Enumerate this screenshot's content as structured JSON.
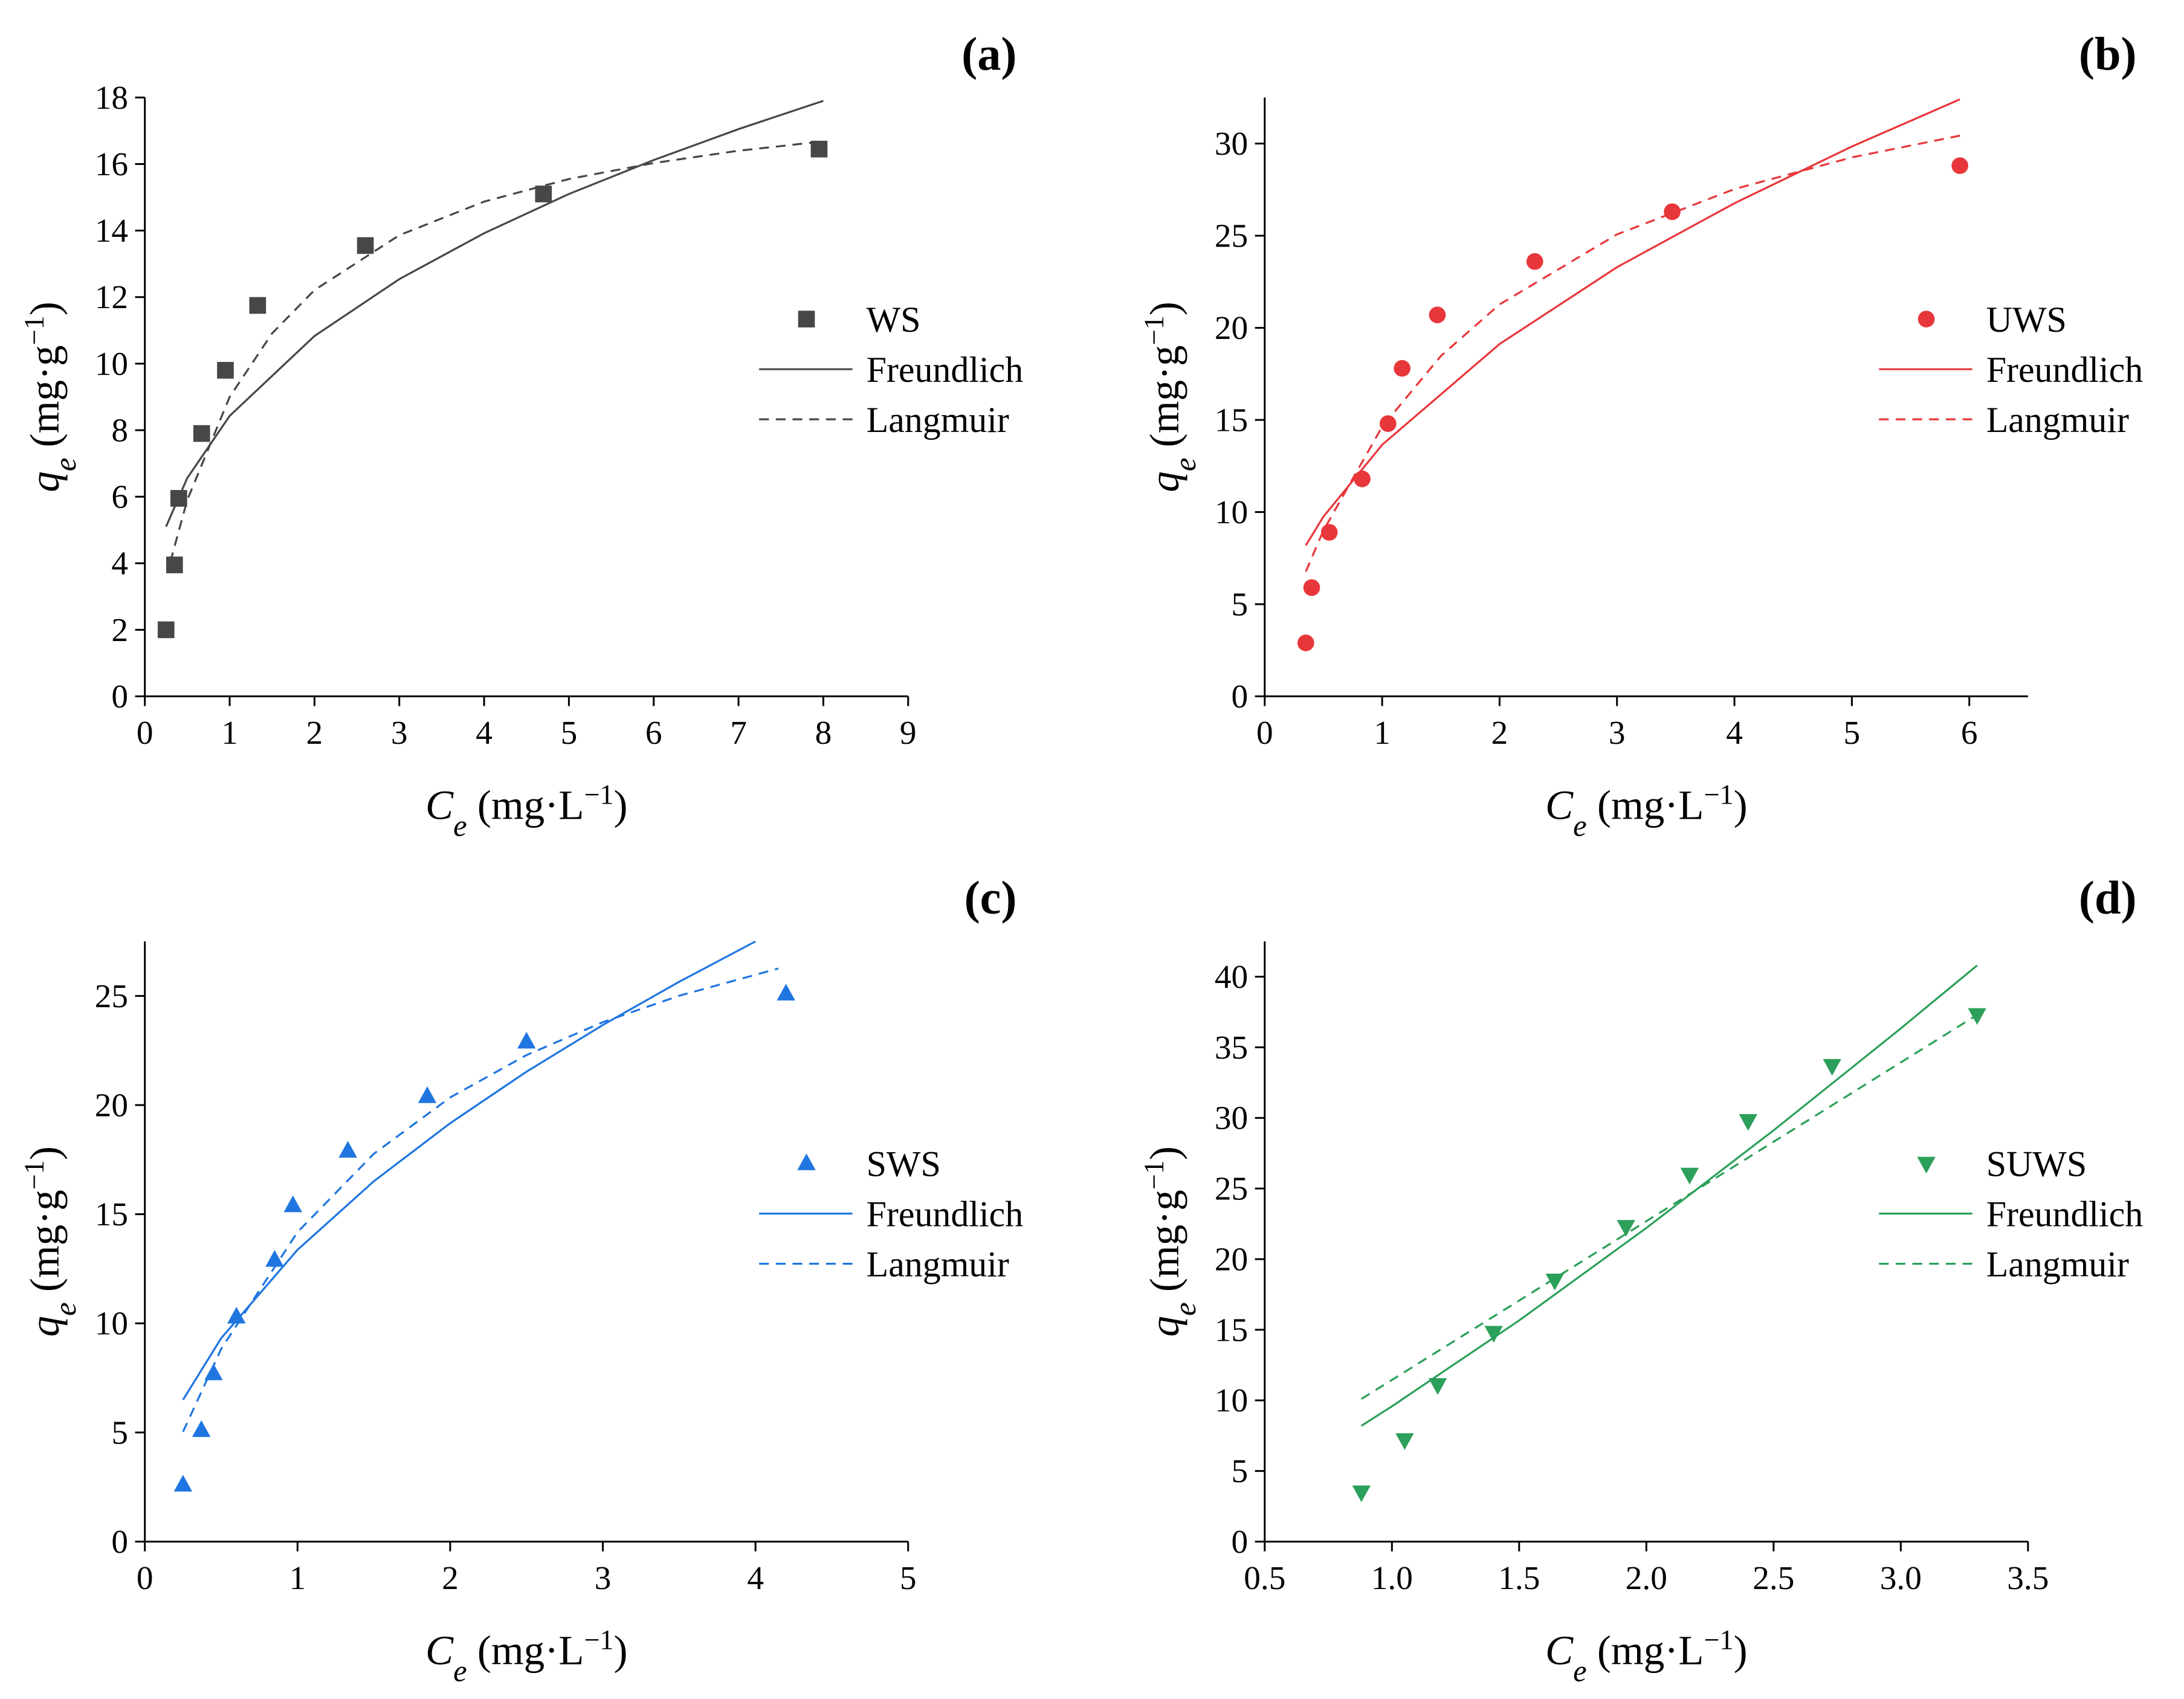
{
  "chart_data": [
    {
      "type": "scatter",
      "panel_label": "(a)",
      "xlabel": [
        "C",
        "e",
        " (mg·L",
        "−1",
        ")"
      ],
      "ylabel": [
        "q",
        "e",
        " (mg·g",
        "−1",
        ")"
      ],
      "xlim": [
        0,
        9
      ],
      "xticks": [
        0,
        1,
        2,
        3,
        4,
        5,
        6,
        7,
        8,
        9
      ],
      "ylim": [
        0,
        18
      ],
      "yticks": [
        0,
        2,
        4,
        6,
        8,
        10,
        12,
        14,
        16,
        18
      ],
      "legend": "right",
      "series": [
        {
          "name": "WS",
          "marker": "square",
          "color": "#474747",
          "x": [
            0.25,
            0.35,
            0.4,
            0.67,
            0.95,
            1.33,
            2.6,
            4.7,
            7.95
          ],
          "values": [
            2.0,
            3.95,
            5.95,
            7.9,
            9.8,
            11.75,
            13.55,
            15.1,
            16.45
          ]
        },
        {
          "name": "Freundlich",
          "linestyle": "solid",
          "color": "#474747",
          "x": [
            0.25,
            0.5,
            1,
            2,
            3,
            4,
            5,
            6,
            7,
            8
          ],
          "values": [
            5.1,
            6.56,
            8.43,
            10.83,
            12.54,
            13.92,
            15.1,
            16.12,
            17.05,
            17.9
          ]
        },
        {
          "name": "Langmuir",
          "linestyle": "dashed",
          "color": "#474747",
          "x": [
            0.3,
            0.5,
            1,
            1.5,
            2,
            3,
            4,
            5,
            6,
            7,
            8
          ],
          "values": [
            4.04,
            5.9,
            9.0,
            10.91,
            12.21,
            13.86,
            14.87,
            15.55,
            16.03,
            16.4,
            16.68
          ]
        }
      ]
    },
    {
      "type": "scatter",
      "panel_label": "(b)",
      "xlabel": [
        "C",
        "e",
        " (mg·L",
        "−1",
        ")"
      ],
      "ylabel": [
        "q",
        "e",
        " (mg·g",
        "−1",
        ")"
      ],
      "xlim": [
        0,
        6.5
      ],
      "xticks": [
        0,
        1,
        2,
        3,
        4,
        5,
        6
      ],
      "ylim": [
        0,
        32.5
      ],
      "yticks": [
        0,
        5,
        10,
        15,
        20,
        25,
        30
      ],
      "legend": "right",
      "series": [
        {
          "name": "UWS",
          "marker": "circle",
          "color": "#e8373a",
          "x": [
            0.35,
            0.4,
            0.55,
            0.83,
            1.05,
            1.17,
            1.47,
            2.3,
            3.47,
            5.92
          ],
          "values": [
            2.9,
            5.9,
            8.9,
            11.8,
            14.8,
            17.8,
            20.7,
            23.6,
            26.3,
            28.8
          ]
        },
        {
          "name": "Freundlich",
          "linestyle": "solid",
          "color": "#e8373a",
          "x": [
            0.35,
            0.5,
            1,
            2,
            3,
            4,
            5,
            5.92
          ],
          "values": [
            8.19,
            9.75,
            13.65,
            19.12,
            23.29,
            26.76,
            29.84,
            32.4
          ]
        },
        {
          "name": "Langmuir",
          "linestyle": "dashed",
          "color": "#e8373a",
          "x": [
            0.35,
            0.5,
            1,
            1.5,
            2,
            3,
            4,
            5,
            5.92
          ],
          "values": [
            6.77,
            9.0,
            14.63,
            18.47,
            21.27,
            25.07,
            27.53,
            29.25,
            30.43
          ]
        }
      ]
    },
    {
      "type": "scatter",
      "panel_label": "(c)",
      "xlabel": [
        "C",
        "e",
        " (mg·L",
        "−1",
        ")"
      ],
      "ylabel": [
        "q",
        "e",
        " (mg·g",
        "−1",
        ")"
      ],
      "xlim": [
        0,
        5
      ],
      "xticks": [
        0,
        1,
        2,
        3,
        4,
        5
      ],
      "ylim": [
        0,
        27.5
      ],
      "yticks": [
        0,
        5,
        10,
        15,
        20,
        25
      ],
      "legend": "right",
      "series": [
        {
          "name": "SWS",
          "marker": "triangle-up",
          "color": "#1f76e0",
          "x": [
            0.25,
            0.37,
            0.45,
            0.6,
            0.85,
            0.97,
            1.33,
            1.85,
            2.5,
            4.2
          ],
          "values": [
            2.6,
            5.1,
            7.7,
            10.3,
            12.9,
            15.4,
            17.9,
            20.4,
            22.9,
            25.1
          ]
        },
        {
          "name": "Freundlich",
          "linestyle": "solid",
          "color": "#1f76e0",
          "x": [
            0.25,
            0.5,
            1,
            1.5,
            2,
            2.5,
            3,
            3.5,
            4
          ],
          "values": [
            6.5,
            9.32,
            13.37,
            16.51,
            19.17,
            21.53,
            23.67,
            25.65,
            27.5
          ]
        },
        {
          "name": "Langmuir",
          "linestyle": "dashed",
          "color": "#1f76e0",
          "x": [
            0.25,
            0.5,
            1,
            1.5,
            2,
            2.5,
            3,
            3.5,
            4.15
          ],
          "values": [
            5.03,
            8.83,
            14.18,
            17.77,
            20.35,
            22.29,
            23.8,
            25.01,
            26.26
          ]
        }
      ]
    },
    {
      "type": "scatter",
      "panel_label": "(d)",
      "xlabel": [
        "C",
        "e",
        " (mg·L",
        "−1",
        ")"
      ],
      "ylabel": [
        "q",
        "e",
        " (mg·g",
        "−1",
        ")"
      ],
      "xlim": [
        0.5,
        3.5
      ],
      "xticks": [
        0.5,
        {
          "value": 1,
          "label": "1.0"
        },
        1.5,
        {
          "value": 2,
          "label": "2.0"
        },
        2.5,
        {
          "value": 3,
          "label": "3.0"
        },
        3.5
      ],
      "ylim": [
        0,
        42.5
      ],
      "yticks": [
        0,
        5,
        10,
        15,
        20,
        25,
        30,
        35,
        40
      ],
      "legend": "right",
      "series": [
        {
          "name": "SUWS",
          "marker": "triangle-down",
          "color": "#2ca05a",
          "x": [
            0.88,
            1.05,
            1.18,
            1.4,
            1.64,
            1.92,
            2.17,
            2.4,
            2.73,
            3.3
          ],
          "values": [
            3.5,
            7.2,
            11.1,
            14.8,
            18.5,
            22.3,
            26.0,
            29.8,
            33.7,
            37.3
          ]
        },
        {
          "name": "Freundlich",
          "linestyle": "solid",
          "color": "#2ca05a",
          "x": [
            0.88,
            1.0,
            1.5,
            2,
            2.5,
            3,
            3.3
          ],
          "values": [
            8.2,
            9.58,
            15.66,
            22.21,
            29.12,
            36.34,
            40.8
          ]
        },
        {
          "name": "Langmuir",
          "linestyle": "dashed",
          "color": "#2ca05a",
          "x": [
            0.88,
            1.0,
            1.5,
            2.0,
            2.5,
            3.0,
            3.3
          ],
          "values": [
            10.1,
            11.45,
            17.07,
            22.69,
            28.31,
            33.93,
            37.3
          ]
        }
      ]
    }
  ]
}
